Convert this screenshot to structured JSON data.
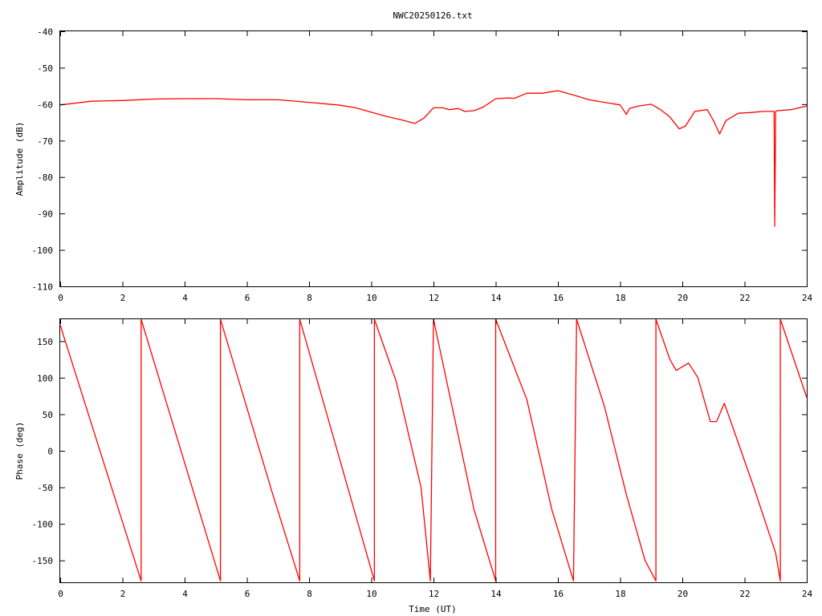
{
  "title": "NWC20250126.txt",
  "colors": {
    "series": "#ff0000",
    "axis": "#000000",
    "background": "#ffffff"
  },
  "chart_data": [
    {
      "type": "line",
      "title": "NWC20250126.txt",
      "xlabel": "",
      "ylabel": "Amplitude (dB)",
      "xlim": [
        0,
        24
      ],
      "ylim": [
        -110,
        -40
      ],
      "xticks": [
        "0",
        "2",
        "4",
        "6",
        "8",
        "10",
        "12",
        "14",
        "16",
        "18",
        "20",
        "22",
        "24"
      ],
      "yticks": [
        "-40",
        "-50",
        "-60",
        "-70",
        "-80",
        "-90",
        "-100",
        "-110"
      ],
      "grid": false,
      "series": [
        {
          "x": [
            0,
            1,
            2,
            3,
            4,
            5,
            6,
            7,
            8,
            9,
            9.5,
            10,
            10.5,
            11,
            11.4,
            11.7,
            12,
            12.3,
            12.5,
            12.8,
            13,
            13.3,
            13.6,
            14,
            14.4,
            14.6,
            15,
            15.5,
            16,
            16.5,
            17,
            17.5,
            18,
            18.2,
            18.3,
            18.6,
            19,
            19.3,
            19.6,
            19.9,
            20.1,
            20.4,
            20.8,
            21.0,
            21.2,
            21.4,
            21.8,
            22.2,
            22.6,
            22.95,
            22.97,
            23.0,
            23.05,
            23.5,
            24
          ],
          "y": [
            -60.2,
            -59.2,
            -59.0,
            -58.6,
            -58.5,
            -58.5,
            -58.8,
            -58.8,
            -59.5,
            -60.3,
            -61.0,
            -62.2,
            -63.4,
            -64.4,
            -65.3,
            -63.8,
            -61.0,
            -61.0,
            -61.5,
            -61.2,
            -62.0,
            -61.8,
            -60.8,
            -58.5,
            -58.3,
            -58.4,
            -57.0,
            -57.0,
            -56.3,
            -57.5,
            -58.8,
            -59.5,
            -60.2,
            -62.8,
            -61.2,
            -60.5,
            -60.0,
            -61.5,
            -63.5,
            -66.8,
            -66.0,
            -62.0,
            -61.5,
            -64.5,
            -68.2,
            -64.5,
            -62.5,
            -62.3,
            -62.0,
            -62.0,
            -93.5,
            -62.0,
            -61.8,
            -61.5,
            -60.5
          ]
        }
      ]
    },
    {
      "type": "line",
      "title": "",
      "xlabel": "Time (UT)",
      "ylabel": "Phase (deg)",
      "xlim": [
        0,
        24
      ],
      "ylim": [
        -180,
        180
      ],
      "xticks": [
        "0",
        "2",
        "4",
        "6",
        "8",
        "10",
        "12",
        "14",
        "16",
        "18",
        "20",
        "22",
        "24"
      ],
      "yticks": [
        "150",
        "100",
        "50",
        "0",
        "-50",
        "-100",
        "-150"
      ],
      "grid": false,
      "series": [
        {
          "x": [
            0,
            2.6,
            2.6,
            5.15,
            5.15,
            6.8,
            7.7,
            7.7,
            10.1,
            10.1,
            10.8,
            11.6,
            11.9,
            12.0,
            12.0,
            13.3,
            14.0,
            14.0,
            15.0,
            15.8,
            16.5,
            16.6,
            16.6,
            17.5,
            18.2,
            18.8,
            19.15,
            19.15,
            19.6,
            19.8,
            20.2,
            20.5,
            20.9,
            21.1,
            21.35,
            21.6,
            22.3,
            23.0,
            23.15,
            23.15,
            24
          ],
          "y": [
            172,
            -178,
            180,
            -178,
            180,
            -55,
            -178,
            180,
            -178,
            180,
            95,
            -50,
            -178,
            180,
            180,
            -80,
            -178,
            180,
            70,
            -80,
            -178,
            180,
            180,
            60,
            -60,
            -150,
            -178,
            180,
            125,
            110,
            120,
            100,
            40,
            40,
            65,
            35,
            -50,
            -140,
            -178,
            180,
            73
          ]
        }
      ]
    }
  ]
}
